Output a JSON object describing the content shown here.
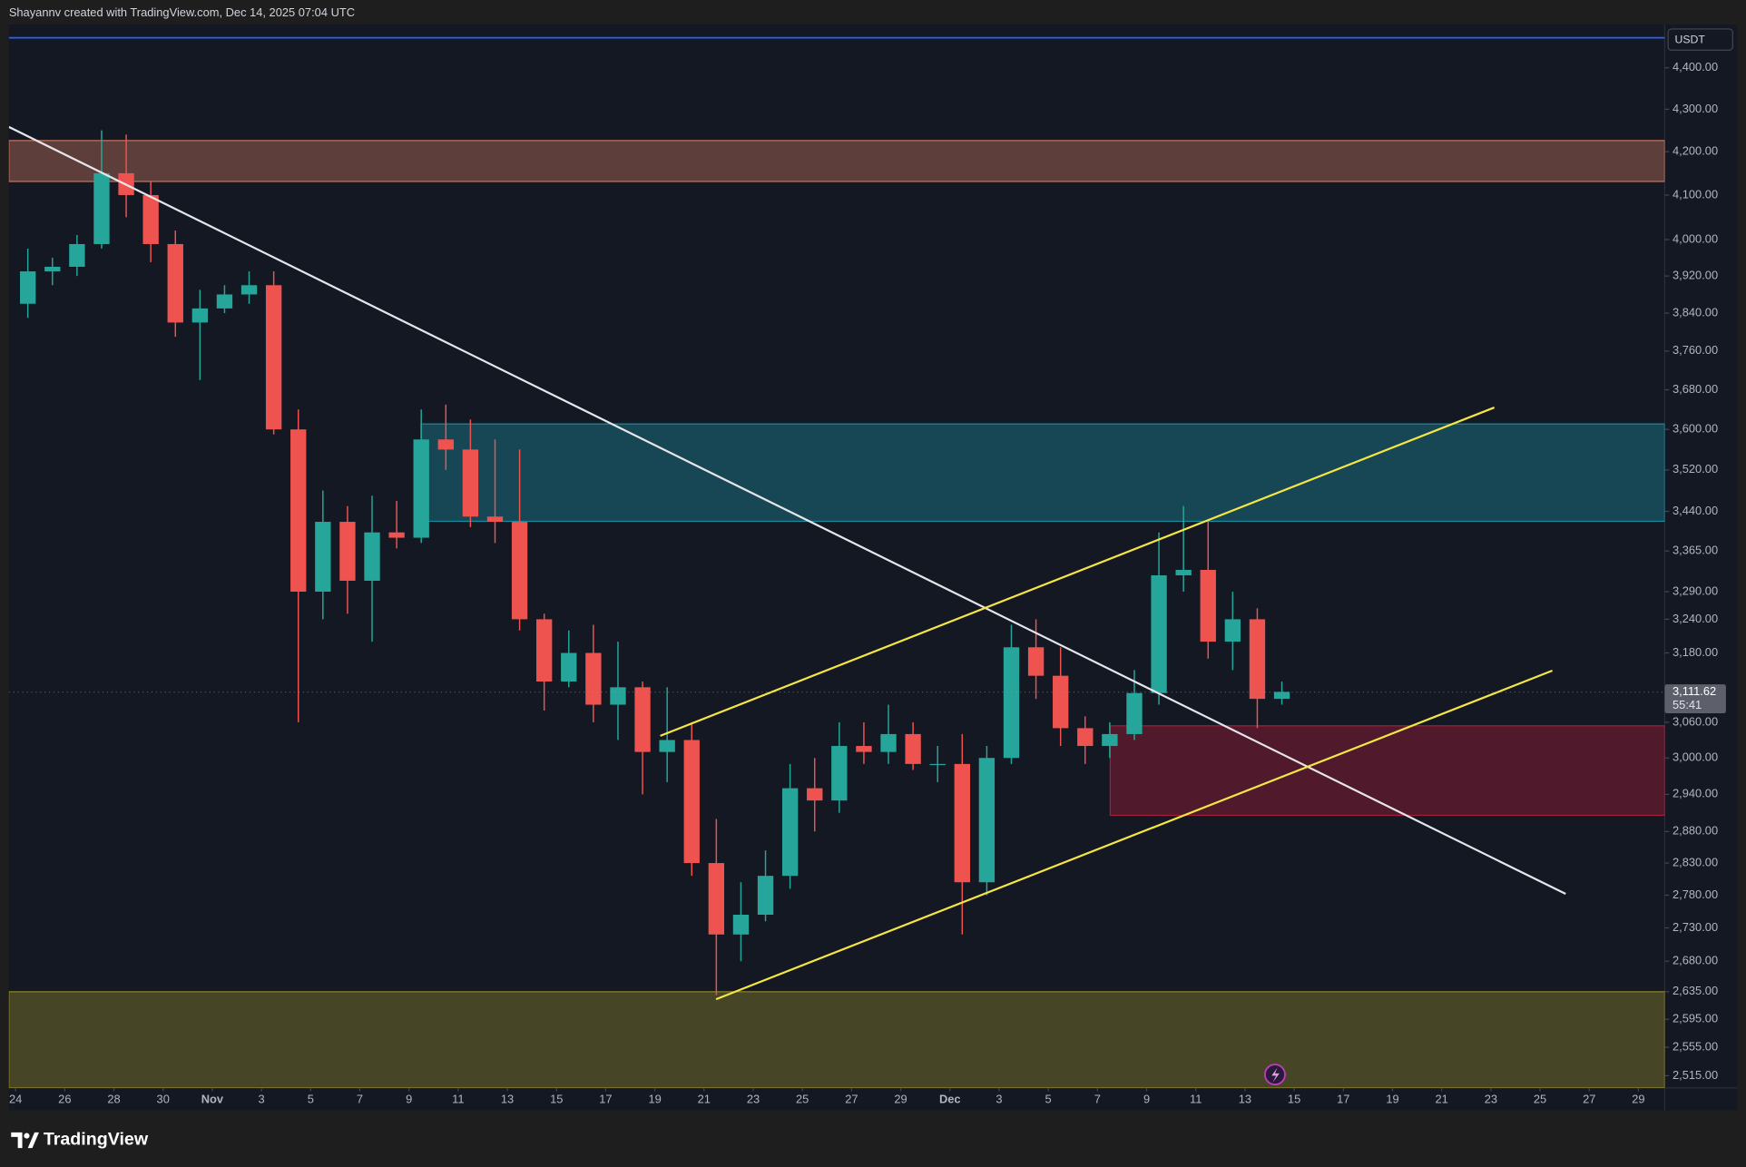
{
  "header": "Shayannv created with TradingView.com, Dec 14, 2025 07:04 UTC",
  "brand": "TradingView",
  "chart_data": {
    "type": "candlestick",
    "log_scale": true,
    "unit": "USDT",
    "up_color": "#26a69a",
    "down_color": "#ef5350",
    "xlim": [
      -0.27,
      67.07
    ],
    "ylim": [
      2498,
      4507
    ],
    "xticks": [
      {
        "value": 0,
        "label": "24"
      },
      {
        "value": 2,
        "label": "26"
      },
      {
        "value": 4,
        "label": "28"
      },
      {
        "value": 6,
        "label": "30"
      },
      {
        "value": 8,
        "label": "Nov"
      },
      {
        "value": 10,
        "label": "3"
      },
      {
        "value": 12,
        "label": "5"
      },
      {
        "value": 14,
        "label": "7"
      },
      {
        "value": 16,
        "label": "9"
      },
      {
        "value": 18,
        "label": "11"
      },
      {
        "value": 20,
        "label": "13"
      },
      {
        "value": 22,
        "label": "15"
      },
      {
        "value": 24,
        "label": "17"
      },
      {
        "value": 26,
        "label": "19"
      },
      {
        "value": 28,
        "label": "21"
      },
      {
        "value": 30,
        "label": "23"
      },
      {
        "value": 32,
        "label": "25"
      },
      {
        "value": 34,
        "label": "27"
      },
      {
        "value": 36,
        "label": "29"
      },
      {
        "value": 38,
        "label": "Dec"
      },
      {
        "value": 40,
        "label": "3"
      },
      {
        "value": 42,
        "label": "5"
      },
      {
        "value": 44,
        "label": "7"
      },
      {
        "value": 46,
        "label": "9"
      },
      {
        "value": 48,
        "label": "11"
      },
      {
        "value": 50,
        "label": "13"
      },
      {
        "value": 52,
        "label": "15"
      },
      {
        "value": 54,
        "label": "17"
      },
      {
        "value": 56,
        "label": "19"
      },
      {
        "value": 58,
        "label": "21"
      },
      {
        "value": 60,
        "label": "23"
      },
      {
        "value": 62,
        "label": "25"
      },
      {
        "value": 64,
        "label": "27"
      },
      {
        "value": 66,
        "label": "29"
      }
    ],
    "yticks": [
      {
        "value": 4400,
        "label": "4,400.00"
      },
      {
        "value": 4300,
        "label": "4,300.00"
      },
      {
        "value": 4200,
        "label": "4,200.00"
      },
      {
        "value": 4100,
        "label": "4,100.00"
      },
      {
        "value": 4000,
        "label": "4,000.00"
      },
      {
        "value": 3920,
        "label": "3,920.00"
      },
      {
        "value": 3840,
        "label": "3,840.00"
      },
      {
        "value": 3760,
        "label": "3,760.00"
      },
      {
        "value": 3680,
        "label": "3,680.00"
      },
      {
        "value": 3600,
        "label": "3,600.00"
      },
      {
        "value": 3520,
        "label": "3,520.00"
      },
      {
        "value": 3440,
        "label": "3,440.00"
      },
      {
        "value": 3365,
        "label": "3,365.00"
      },
      {
        "value": 3290,
        "label": "3,290.00"
      },
      {
        "value": 3240,
        "label": "3,240.00"
      },
      {
        "value": 3180,
        "label": "3,180.00"
      },
      {
        "value": 3060,
        "label": "3,060.00"
      },
      {
        "value": 3000,
        "label": "3,000.00"
      },
      {
        "value": 2940,
        "label": "2,940.00"
      },
      {
        "value": 2880,
        "label": "2,880.00"
      },
      {
        "value": 2830,
        "label": "2,830.00"
      },
      {
        "value": 2780,
        "label": "2,780.00"
      },
      {
        "value": 2730,
        "label": "2,730.00"
      },
      {
        "value": 2680,
        "label": "2,680.00"
      },
      {
        "value": 2635,
        "label": "2,635.00"
      },
      {
        "value": 2595,
        "label": "2,595.00"
      },
      {
        "value": 2555,
        "label": "2,555.00"
      },
      {
        "value": 2515,
        "label": "2,515.00"
      }
    ],
    "x": [
      0,
      1,
      2,
      3,
      4,
      5,
      6,
      7,
      8,
      9,
      10,
      11,
      12,
      13,
      14,
      15,
      16,
      17,
      18,
      19,
      20,
      21,
      22,
      23,
      24,
      25,
      26,
      27,
      28,
      29,
      30,
      31,
      32,
      33,
      34,
      35,
      36,
      37,
      38,
      39,
      40,
      41,
      42,
      43,
      44,
      45,
      46,
      47,
      48,
      49,
      50,
      51
    ],
    "open": [
      3860,
      3930,
      3940,
      3990,
      4150,
      4100,
      3990,
      3820,
      3850,
      3880,
      3900,
      3600,
      3290,
      3420,
      3310,
      3400,
      3390,
      3580,
      3560,
      3430,
      3420,
      3240,
      3130,
      3180,
      3090,
      3120,
      3010,
      3030,
      2830,
      2720,
      2750,
      2810,
      2950,
      2930,
      3020,
      3010,
      3040,
      2990,
      2990,
      2800,
      3000,
      3190,
      3140,
      3050,
      3020,
      3040,
      3110,
      3320,
      3330,
      3200,
      3240,
      3100
    ],
    "high": [
      3980,
      3960,
      4010,
      4250,
      4240,
      4130,
      4020,
      3890,
      3900,
      3930,
      3930,
      3640,
      3480,
      3450,
      3470,
      3460,
      3640,
      3650,
      3620,
      3580,
      3560,
      3250,
      3220,
      3230,
      3200,
      3130,
      3120,
      3060,
      2900,
      2800,
      2850,
      2990,
      3000,
      3060,
      3060,
      3090,
      3060,
      3020,
      3040,
      3020,
      3230,
      3240,
      3190,
      3070,
      3060,
      3150,
      3400,
      3450,
      3420,
      3290,
      3260,
      3130
    ],
    "low": [
      3830,
      3900,
      3920,
      3980,
      4050,
      3950,
      3790,
      3700,
      3840,
      3860,
      3590,
      3060,
      3240,
      3250,
      3200,
      3370,
      3380,
      3520,
      3410,
      3380,
      3220,
      3080,
      3120,
      3060,
      3030,
      2940,
      2960,
      2810,
      2630,
      2680,
      2740,
      2790,
      2880,
      2910,
      2990,
      2990,
      2980,
      2960,
      2720,
      2780,
      2990,
      3100,
      3020,
      2990,
      3000,
      3030,
      3090,
      3290,
      3170,
      3150,
      3050,
      3090
    ],
    "close": [
      3930,
      3940,
      3990,
      4150,
      4100,
      3990,
      3820,
      3850,
      3880,
      3900,
      3600,
      3290,
      3420,
      3310,
      3400,
      3390,
      3580,
      3560,
      3430,
      3420,
      3240,
      3130,
      3180,
      3090,
      3120,
      3010,
      3030,
      2830,
      2720,
      2750,
      2810,
      2950,
      2930,
      3020,
      3010,
      3040,
      2990,
      2990,
      2800,
      3000,
      3190,
      3140,
      3050,
      3020,
      3040,
      3110,
      3320,
      3330,
      3200,
      3240,
      3100,
      3112
    ],
    "last_price": {
      "value": 3111.62,
      "label": "3,111.62"
    },
    "countdown": "55:41",
    "levels": [
      {
        "y": 4474,
        "color": "#2962ff"
      }
    ],
    "zones": [
      {
        "y": [
          4131,
          4226
        ],
        "color": "#e8866a"
      },
      {
        "x_start": 16.49,
        "y": [
          3421,
          3611
        ],
        "color": "#1ea0b4"
      },
      {
        "x_start": 44.52,
        "y": [
          2906,
          3054
        ],
        "color": "#c2203e"
      },
      {
        "y": [
          2498,
          2635
        ],
        "color": "#a39a2a"
      }
    ],
    "trendlines": [
      {
        "x": [
          -0.27,
          63.04
        ],
        "y": [
          4258,
          2782
        ],
        "color": "#e6e6ea"
      },
      {
        "x": [
          26.22,
          60.14
        ],
        "y": [
          3037,
          3644
        ],
        "color": "#f5e645"
      },
      {
        "x": [
          28.49,
          62.5
        ],
        "y": [
          2624,
          3149
        ],
        "color": "#f5e645"
      }
    ]
  }
}
